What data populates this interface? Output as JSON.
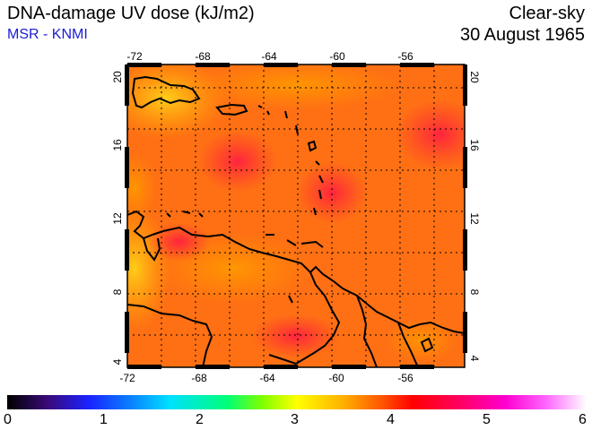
{
  "header": {
    "title": "DNA-damage UV dose (kJ/m2)",
    "credit": "MSR - KNMI",
    "condition": "Clear-sky",
    "date": "30 August 1965"
  },
  "map": {
    "lon_range": [
      -72,
      -52
    ],
    "lat_range": [
      4,
      20
    ],
    "lon_ticks": [
      "-72",
      "-68",
      "-64",
      "-60",
      "-56"
    ],
    "lat_ticks": [
      "4",
      "8",
      "12",
      "16",
      "20"
    ],
    "gridlines": true,
    "colors": {
      "background_field": "#ff7a10",
      "coast": "#000000"
    }
  },
  "colorbar": {
    "min": 0,
    "max": 6,
    "labels": [
      "0",
      "1",
      "2",
      "3",
      "4",
      "5",
      "6"
    ]
  }
}
